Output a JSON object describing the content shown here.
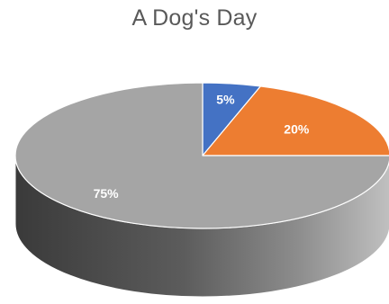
{
  "chart_data": {
    "type": "pie",
    "title": "A Dog's Day",
    "categories": [
      "",
      "",
      ""
    ],
    "values": [
      5,
      20,
      75
    ],
    "data_labels": [
      "5%",
      "20%",
      "75%"
    ],
    "colors": [
      "#4472C4",
      "#ED7D31",
      "#A5A5A5"
    ],
    "three_d": true,
    "start_angle_deg": 0,
    "legend": "none"
  }
}
